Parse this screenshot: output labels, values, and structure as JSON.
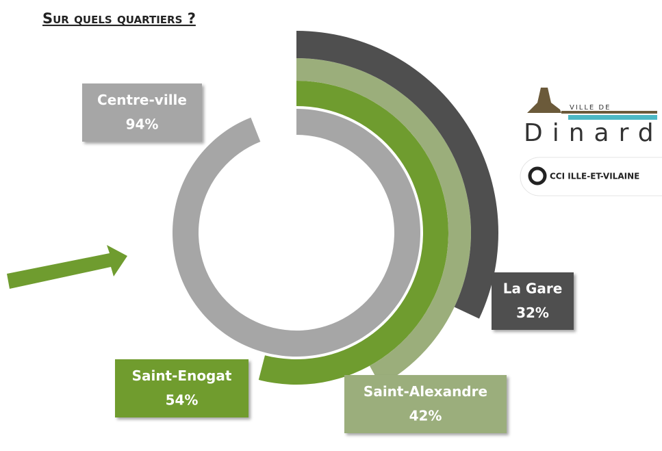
{
  "chart_data": {
    "type": "radial_bar",
    "title": "Sur quels quartiers ?",
    "categories": [
      "Centre-ville",
      "Saint-Enogat",
      "Saint-Alexandre",
      "La Gare"
    ],
    "values": [
      94,
      54,
      42,
      32
    ],
    "value_labels": [
      "94%",
      "54%",
      "42%",
      "32%"
    ],
    "colors": [
      "#a6a6a6",
      "#6f9c2f",
      "#9bae7b",
      "#4f4f4f"
    ],
    "ylim": [
      0,
      100
    ]
  },
  "logos": {
    "city_small": "VILLE DE",
    "city": "Dinard",
    "cci": "CCI ILLE-ET-VILAINE"
  }
}
